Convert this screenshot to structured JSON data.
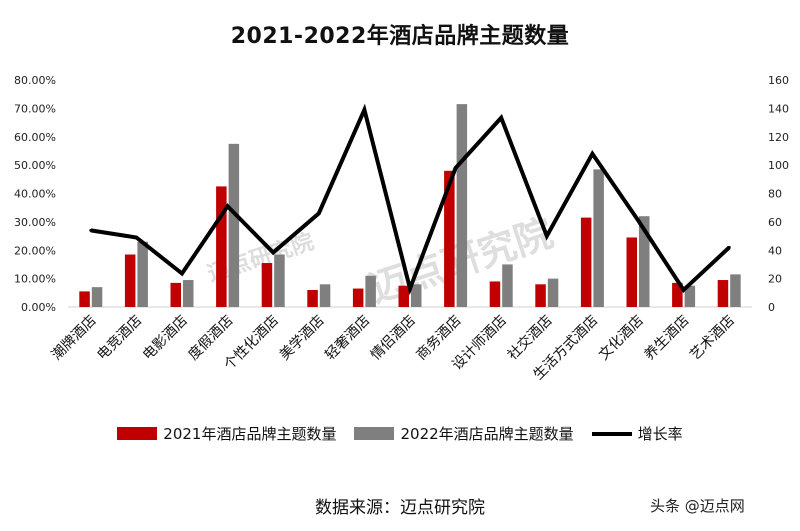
{
  "colors": {
    "bar2021": "#c00000",
    "bar2022": "#7f7f7f",
    "line": "#000000"
  },
  "watermark": {
    "text": "迈点研究院",
    "corner": "头条 @迈点网"
  },
  "source_text": "数据来源：迈点研究院",
  "chart_data": {
    "type": "bar",
    "title": "2021-2022年酒店品牌主题数量",
    "categories": [
      "潮牌酒店",
      "电竞酒店",
      "电影酒店",
      "度假酒店",
      "个性化酒店",
      "美学酒店",
      "轻奢酒店",
      "情侣酒店",
      "商务酒店",
      "设计师酒店",
      "社交酒店",
      "生活方式酒店",
      "文化酒店",
      "养生酒店",
      "艺术酒店"
    ],
    "series": [
      {
        "name": "2021年酒店品牌主题数量",
        "type": "bar",
        "axis": "right",
        "values": [
          11,
          37,
          17,
          85,
          31,
          12,
          13,
          15,
          96,
          18,
          16,
          63,
          49,
          17,
          19
        ]
      },
      {
        "name": "2022年酒店品牌主题数量",
        "type": "bar",
        "axis": "right",
        "values": [
          14,
          46,
          19,
          115,
          37,
          16,
          22,
          16,
          143,
          30,
          20,
          97,
          64,
          15,
          23
        ]
      },
      {
        "name": "增长率",
        "type": "line",
        "axis": "left",
        "values": [
          27.0,
          24.5,
          11.8,
          35.5,
          19.2,
          33.0,
          69.5,
          6.5,
          49.0,
          66.7,
          25.0,
          54.0,
          30.6,
          6.0,
          21.0
        ]
      }
    ],
    "y_left": {
      "min": 0,
      "max": 80,
      "step": 10,
      "format": "percent",
      "ticks": [
        "0.00%",
        "10.00%",
        "20.00%",
        "30.00%",
        "40.00%",
        "50.00%",
        "60.00%",
        "70.00%",
        "80.00%"
      ]
    },
    "y_right": {
      "min": 0,
      "max": 160,
      "step": 20,
      "ticks": [
        "0",
        "20",
        "40",
        "60",
        "80",
        "100",
        "120",
        "140",
        "160"
      ]
    },
    "grid": false,
    "legend_position": "bottom"
  }
}
